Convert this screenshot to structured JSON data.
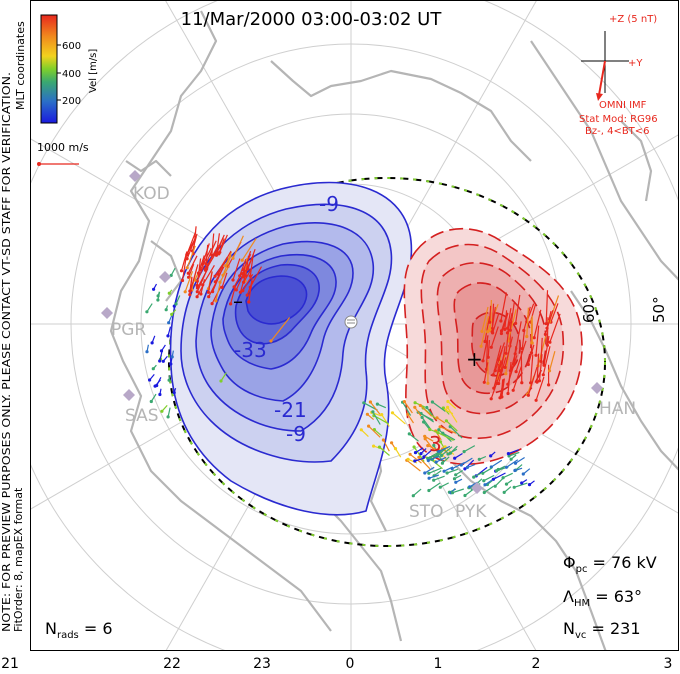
{
  "title": "11/Mar/2000 03:00-03:02 UT",
  "side_notes": {
    "coords": "MLT coordinates",
    "preview": "NOTE: FOR PREVIEW PURPOSES ONLY. PLEASE CONTACT VT-SD STAFF FOR VERIFICATION.",
    "fit": "FitOrder: 8, mapEX format"
  },
  "colorbar": {
    "label": "Vel [m/s]",
    "ticks": [
      "600",
      "400",
      "200"
    ],
    "colors": [
      "#e8281e",
      "#f08a1e",
      "#f3d21e",
      "#7fcf2a",
      "#3aa870",
      "#2b6fc7",
      "#1a1adf"
    ]
  },
  "scale_vector_label": "1000 m/s",
  "imf": {
    "z_label": "+Z (5 nT)",
    "y_label": "+Y",
    "source": "OMNI IMF",
    "model": "Stat Mod: RG96",
    "condition": "Bz-, 4<BT<6",
    "color": "#e8281e"
  },
  "stations": [
    "KOD",
    "PGR",
    "SAS",
    "STO",
    "PYK",
    "HAN"
  ],
  "latitude_labels": [
    "60°",
    "50°"
  ],
  "contours": {
    "negative_labels": [
      "-9",
      "-33",
      "-21",
      "-9"
    ],
    "positive_labels": [
      "3"
    ],
    "min_marker": "–",
    "max_marker": "+",
    "negative_color": "#2a2ad0",
    "positive_color": "#d42020"
  },
  "stats": {
    "phi_pc": "76 kV",
    "lambda_hm": "63°",
    "n_vc": "231",
    "n_rads": "6"
  },
  "stat_labels": {
    "phi": "Φ",
    "phi_sub": "pc",
    "lambda": "Λ",
    "lambda_sub": "HM",
    "nvc": "N",
    "nvc_sub": "vc",
    "nrads": "N",
    "nrads_sub": "rads"
  },
  "x_axis_ticks": [
    "21",
    "22",
    "23",
    "0",
    "1",
    "2",
    "3"
  ]
}
